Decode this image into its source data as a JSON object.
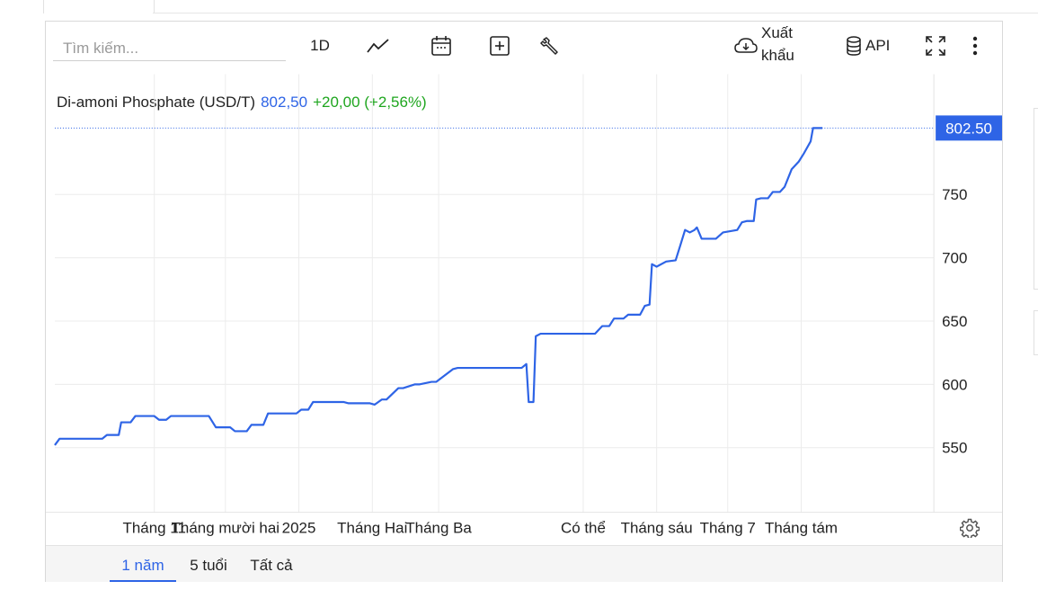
{
  "toolbar": {
    "search_placeholder": "Tìm kiếm...",
    "interval_label": "1D",
    "export_label_line1": "Xuất",
    "export_label_line2": "khẩu",
    "api_label": "API"
  },
  "legend": {
    "name": "Di-amoni Phosphate (USD/T)",
    "value": "802,50",
    "change": "+20,00 (+2,56%)"
  },
  "colors": {
    "line": "#2e64e6",
    "change_positive": "#1fa61f",
    "price_label_bg": "#2e64e6"
  },
  "footer": {
    "ranges": [
      {
        "label": "1 năm",
        "active": true
      },
      {
        "label": "5 tuổi",
        "active": false
      },
      {
        "label": "Tất cả",
        "active": false
      }
    ]
  },
  "chart_data": {
    "type": "line",
    "title": "Di-amoni Phosphate (USD/T)",
    "last_value_label": "802.50",
    "y_ticks": [
      550,
      600,
      650,
      700,
      750
    ],
    "y_tick_labels": [
      "550",
      "600",
      "650",
      "700",
      "750"
    ],
    "ylim": [
      500,
      810
    ],
    "x_range": [
      "2024-09-20",
      "2025-09-26"
    ],
    "x_ticks": [
      {
        "date": "2024-11-01",
        "label": "Tháng 11"
      },
      {
        "date": "2024-12-01",
        "label": "Tháng mười hai"
      },
      {
        "date": "2025-01-01",
        "label": "2025"
      },
      {
        "date": "2025-02-01",
        "label": "Tháng Hai"
      },
      {
        "date": "2025-03-01",
        "label": "Tháng Ba"
      },
      {
        "date": "2025-05-01",
        "label": "Có thể"
      },
      {
        "date": "2025-06-01",
        "label": "Tháng sáu"
      },
      {
        "date": "2025-07-01",
        "label": "Tháng 7"
      },
      {
        "date": "2025-08-01",
        "label": "Tháng tám"
      }
    ],
    "grid": true,
    "series": [
      {
        "x": [
          "2024-09-20",
          "2024-09-22",
          "2024-09-25",
          "2024-10-10",
          "2024-10-12",
          "2024-10-17",
          "2024-10-18",
          "2024-10-22",
          "2024-10-24",
          "2024-11-01",
          "2024-11-03",
          "2024-11-06",
          "2024-11-08",
          "2024-11-24",
          "2024-11-27",
          "2024-12-03",
          "2024-12-05",
          "2024-12-10",
          "2024-12-12",
          "2024-12-17",
          "2024-12-19",
          "2024-12-31",
          "2025-01-02",
          "2025-01-05",
          "2025-01-07",
          "2025-01-20",
          "2025-01-22",
          "2025-01-31",
          "2025-02-02",
          "2025-02-05",
          "2025-02-07",
          "2025-02-12",
          "2025-02-14",
          "2025-02-19",
          "2025-02-21",
          "2025-02-26",
          "2025-02-28",
          "2025-03-07",
          "2025-03-09",
          "2025-04-05",
          "2025-04-07",
          "2025-04-08",
          "2025-04-10",
          "2025-04-11",
          "2025-04-13",
          "2025-05-06",
          "2025-05-09",
          "2025-05-12",
          "2025-05-14",
          "2025-05-18",
          "2025-05-20",
          "2025-05-25",
          "2025-05-27",
          "2025-05-29",
          "2025-05-30",
          "2025-06-01",
          "2025-06-05",
          "2025-06-09",
          "2025-06-11",
          "2025-06-13",
          "2025-06-15",
          "2025-06-17",
          "2025-06-18",
          "2025-06-20",
          "2025-06-23",
          "2025-06-26",
          "2025-06-29",
          "2025-07-05",
          "2025-07-07",
          "2025-07-09",
          "2025-07-12",
          "2025-07-13",
          "2025-07-15",
          "2025-07-18",
          "2025-07-20",
          "2025-07-23",
          "2025-07-25",
          "2025-07-28",
          "2025-07-31",
          "2025-08-02",
          "2025-08-05",
          "2025-08-06",
          "2025-08-08",
          "2025-08-10"
        ],
        "values": [
          552,
          557,
          557,
          557,
          560,
          560,
          570,
          570,
          575,
          575,
          572,
          572,
          575,
          575,
          566,
          566,
          563,
          563,
          568,
          568,
          577,
          577,
          580,
          580,
          586,
          586,
          585,
          585,
          584,
          588,
          588,
          597,
          597,
          600,
          600,
          602,
          602,
          612,
          613,
          613,
          616,
          586,
          586,
          638,
          640,
          640,
          646,
          646,
          652,
          652,
          655,
          655,
          662,
          663,
          695,
          693,
          697,
          698,
          710,
          722,
          720,
          722,
          724,
          715,
          715,
          715,
          720,
          722,
          728,
          729,
          729,
          746,
          747,
          747,
          752,
          752,
          756,
          770,
          776,
          782,
          792,
          802.5,
          802.5,
          802.5
        ]
      }
    ]
  }
}
